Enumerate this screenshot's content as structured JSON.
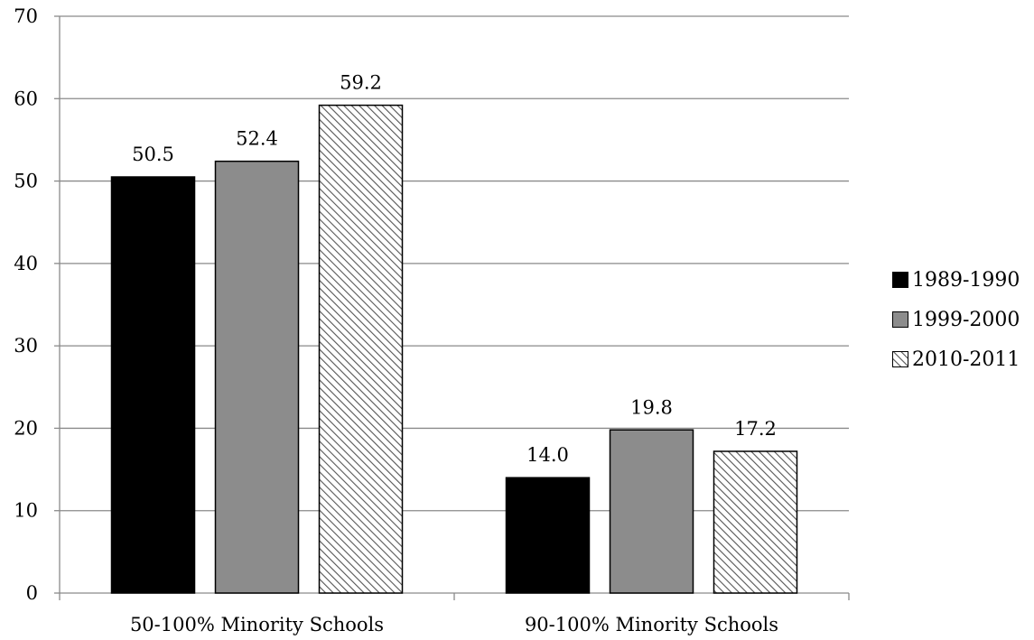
{
  "chart_data": {
    "type": "bar",
    "categories": [
      "50-100% Minority Schools",
      "90-100% Minority Schools"
    ],
    "series": [
      {
        "name": "1989-1990",
        "values": [
          50.5,
          14.0
        ],
        "labels": [
          "50.5",
          "14.0"
        ],
        "color": "#000000",
        "pattern": "solid"
      },
      {
        "name": "1999-2000",
        "values": [
          52.4,
          19.8
        ],
        "labels": [
          "52.4",
          "19.8"
        ],
        "color": "#8c8c8c",
        "pattern": "solid"
      },
      {
        "name": "2010-2011",
        "values": [
          59.2,
          17.2
        ],
        "labels": [
          "59.2",
          "17.2"
        ],
        "color": "#ffffff",
        "pattern": "diagonal-hatch"
      }
    ],
    "ylim": [
      0,
      70
    ],
    "yticks": [
      "0",
      "10",
      "20",
      "30",
      "40",
      "50",
      "60",
      "70"
    ],
    "grid": true,
    "legend_position": "right"
  }
}
